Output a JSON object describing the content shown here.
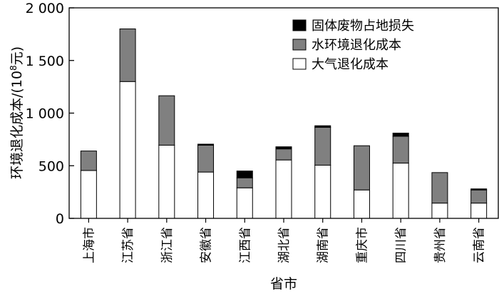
{
  "chart_data": {
    "type": "bar",
    "stacked": true,
    "categories": [
      "上海市",
      "江苏省",
      "浙江省",
      "安徽省",
      "江西省",
      "湖北省",
      "湖南省",
      "重庆市",
      "四川省",
      "贵州省",
      "云南省"
    ],
    "series": [
      {
        "name": "大气退化成本",
        "color": "#ffffff",
        "values": [
          455,
          1300,
          695,
          440,
          290,
          555,
          505,
          270,
          525,
          145,
          145
        ]
      },
      {
        "name": "水环境退化成本",
        "color": "#808080",
        "values": [
          185,
          500,
          470,
          255,
          95,
          105,
          360,
          420,
          255,
          290,
          125
        ]
      },
      {
        "name": "固体废物占地损失",
        "color": "#000000",
        "values": [
          0,
          0,
          0,
          10,
          65,
          20,
          15,
          0,
          30,
          0,
          10
        ]
      }
    ],
    "legend_order": [
      "固体废物占地损失",
      "水环境退化成本",
      "大气退化成本"
    ],
    "legend_position": "top-right",
    "xlabel": "省市",
    "ylabel": "环境退化成本/(10",
    "ylabel_sup": "8",
    "ylabel_suffix": "元)",
    "yticks": [
      "0",
      "500",
      "1 000",
      "1 500",
      "2 000"
    ],
    "ytick_values": [
      0,
      500,
      1000,
      1500,
      2000
    ],
    "ylim": [
      0,
      2000
    ],
    "grid": false
  }
}
